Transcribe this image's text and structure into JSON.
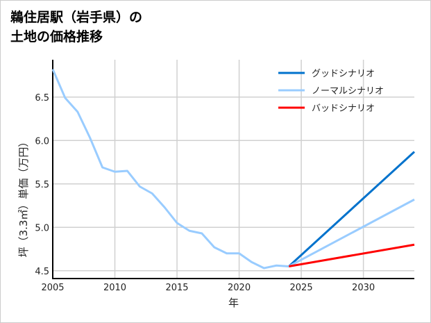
{
  "chart_data": {
    "type": "line",
    "title_lines": [
      "鵜住居駅（岩手県）の",
      "土地の価格推移"
    ],
    "xlabel": "年",
    "ylabel": "坪（3.3㎡）単価（万円）",
    "xlim": [
      2005,
      2034.1
    ],
    "ylim": [
      4.41,
      6.93
    ],
    "xticks": [
      2005,
      2010,
      2015,
      2020,
      2025,
      2030
    ],
    "yticks": [
      4.5,
      5.0,
      5.5,
      6.0,
      6.5
    ],
    "ytick_labels": [
      "4.5",
      "5.0",
      "5.5",
      "6.0",
      "6.5"
    ],
    "grid": true,
    "legend_position": "top-right",
    "series": [
      {
        "name": "history",
        "color": "#99ccff",
        "x": [
          2005,
          2006,
          2007,
          2008,
          2009,
          2010,
          2011,
          2012,
          2013,
          2014,
          2015,
          2016,
          2017,
          2018,
          2019,
          2020,
          2021,
          2022,
          2023,
          2024
        ],
        "y": [
          6.82,
          6.49,
          6.33,
          6.03,
          5.69,
          5.64,
          5.65,
          5.47,
          5.39,
          5.23,
          5.05,
          4.96,
          4.93,
          4.77,
          4.7,
          4.7,
          4.6,
          4.53,
          4.56,
          4.55
        ]
      },
      {
        "name": "グッドシナリオ",
        "color": "#0072cc",
        "x": [
          2024,
          2034.1
        ],
        "y": [
          4.55,
          5.87
        ]
      },
      {
        "name": "ノーマルシナリオ",
        "color": "#99ccff",
        "x": [
          2024,
          2034.1
        ],
        "y": [
          4.55,
          5.32
        ]
      },
      {
        "name": "バッドシナリオ",
        "color": "#ff0000",
        "x": [
          2024,
          2034.1
        ],
        "y": [
          4.55,
          4.8
        ]
      }
    ]
  }
}
